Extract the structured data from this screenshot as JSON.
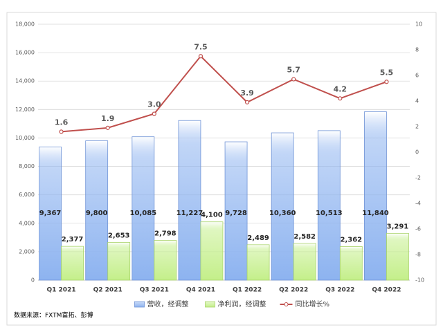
{
  "chart_data": {
    "type": "bar+line",
    "categories": [
      "Q1 2021",
      "Q2 2021",
      "Q3 2021",
      "Q4 2021",
      "Q1 2022",
      "Q2 2022",
      "Q3 2022",
      "Q4 2022"
    ],
    "series": [
      {
        "name": "营收，经调整",
        "type": "bar",
        "color": "#8db3f0",
        "values": [
          9367,
          9800,
          10085,
          11227,
          9728,
          10360,
          10513,
          11840
        ],
        "value_labels": [
          "9,367",
          "9,800",
          "10,085",
          "11,227",
          "9,728",
          "10,360",
          "10,513",
          "11,840"
        ]
      },
      {
        "name": "净利润，经调整",
        "type": "bar",
        "color": "#c4ef8a",
        "values": [
          2377,
          2653,
          2798,
          4100,
          2489,
          2582,
          2362,
          3291
        ],
        "value_labels": [
          "2,377",
          "2,653",
          "2,798",
          "4,100",
          "2,489",
          "2,582",
          "2,362",
          "3,291"
        ]
      },
      {
        "name": "同比增长%",
        "type": "line",
        "axis": "y2",
        "color": "#c0504d",
        "values": [
          1.6,
          1.9,
          3.0,
          7.5,
          3.9,
          5.7,
          4.2,
          5.5
        ],
        "value_labels": [
          "1.6",
          "1.9",
          "3.0",
          "7.5",
          "3.9",
          "5.7",
          "4.2",
          "5.5"
        ]
      }
    ],
    "ylim": [
      0,
      18000
    ],
    "yticks": [
      0,
      {
        "value": 2000,
        "label": "2,000"
      },
      {
        "value": 4000,
        "label": "4,000"
      },
      {
        "value": 6000,
        "label": "6,000"
      },
      {
        "value": 8000,
        "label": "8,000"
      },
      {
        "value": 10000,
        "label": "10,000"
      },
      {
        "value": 12000,
        "label": "12,000"
      },
      {
        "value": 14000,
        "label": "14,000"
      },
      {
        "value": 16000,
        "label": "16,000"
      },
      {
        "value": 18000,
        "label": "18,000"
      }
    ],
    "y2lim": [
      -10,
      10
    ],
    "y2ticks": [
      -10,
      -8,
      -6,
      -4,
      -2,
      0,
      2,
      4,
      6,
      8,
      10
    ],
    "grid": true,
    "legend": "bottom",
    "source": "数据来源：FXTM富拓、彭博"
  }
}
